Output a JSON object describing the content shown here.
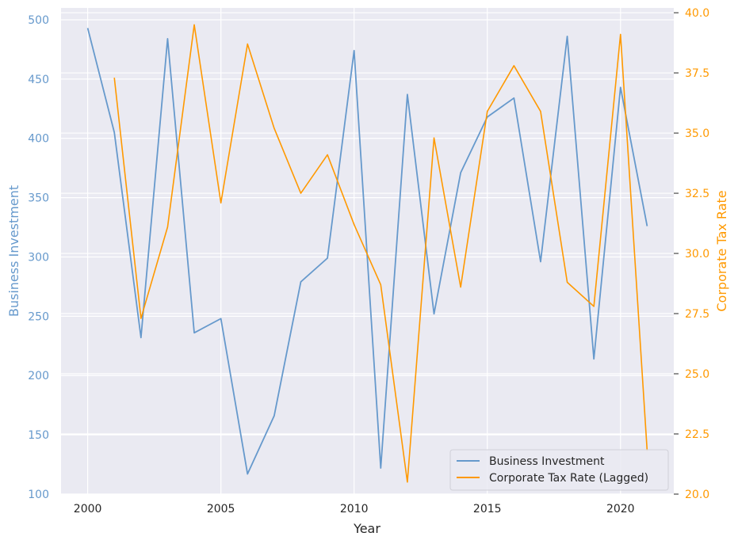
{
  "chart_data": {
    "type": "line",
    "title": "",
    "xlabel": "Year",
    "ylabel_left": "Business Investment",
    "ylabel_right": "Corporate Tax Rate",
    "xlim": [
      1999,
      2022
    ],
    "ylim_left": [
      100,
      510
    ],
    "ylim_right": [
      20,
      40.2
    ],
    "x_ticks": [
      2000,
      2005,
      2010,
      2015,
      2020
    ],
    "y_ticks_left": [
      100,
      150,
      200,
      250,
      300,
      350,
      400,
      450,
      500
    ],
    "y_ticks_right": [
      "20.0",
      "22.5",
      "25.0",
      "27.5",
      "30.0",
      "32.5",
      "35.0",
      "37.5",
      "40.0"
    ],
    "grid": true,
    "legend_position": "lower-right",
    "series": [
      {
        "name": "Business Investment",
        "axis": "left",
        "color": "#6699cc",
        "x": [
          2000,
          2001,
          2002,
          2003,
          2004,
          2005,
          2006,
          2007,
          2008,
          2009,
          2010,
          2011,
          2012,
          2013,
          2014,
          2015,
          2016,
          2017,
          2018,
          2019,
          2020,
          2021
        ],
        "values": [
          493,
          405,
          232,
          484,
          236,
          248,
          117,
          166,
          279,
          299,
          474,
          122,
          437,
          252,
          371,
          418,
          434,
          296,
          486,
          214,
          443,
          326
        ]
      },
      {
        "name": "Corporate Tax Rate (Lagged)",
        "axis": "right",
        "color": "#ff9900",
        "x": [
          2001,
          2002,
          2003,
          2004,
          2005,
          2006,
          2007,
          2008,
          2009,
          2010,
          2011,
          2012,
          2013,
          2014,
          2015,
          2016,
          2017,
          2018,
          2019,
          2020,
          2021
        ],
        "values": [
          37.3,
          27.3,
          31.1,
          39.5,
          32.1,
          38.7,
          35.2,
          32.5,
          34.1,
          31.2,
          28.7,
          20.5,
          34.8,
          28.6,
          35.9,
          37.8,
          35.9,
          28.8,
          27.8,
          39.1,
          21.8
        ]
      }
    ]
  }
}
